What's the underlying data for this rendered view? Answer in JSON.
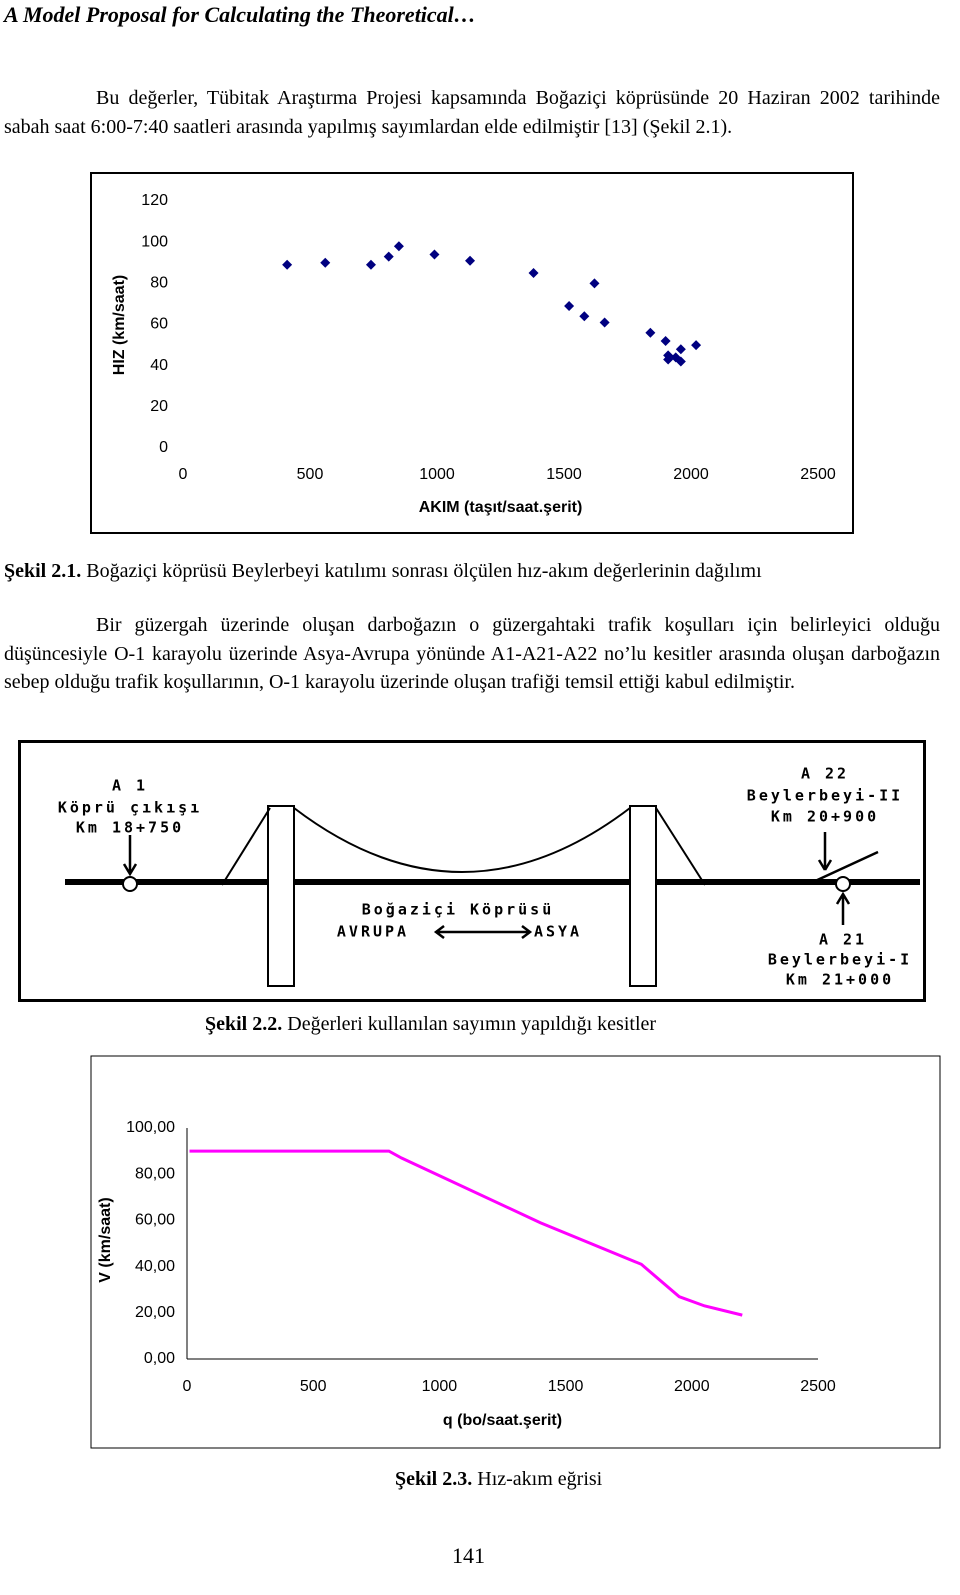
{
  "header": {
    "title": "A Model Proposal for  Calculating the Theoretical…"
  },
  "paragraphs": [
    "Bu değerler, Tübitak Araştırma Projesi kapsamında Boğaziçi köprüsünde 20 Haziran 2002 tarihinde sabah saat 6:00-7:40 saatleri arasında yapılmış sayımlardan elde edilmiştir [13] (Şekil 2.1).",
    "Bir güzergah üzerinde oluşan darboğazın o güzergahtaki trafik koşulları için belirleyici olduğu düşüncesiyle O-1 karayolu üzerinde Asya-Avrupa yönünde A1-A21-A22 no’lu kesitler arasında oluşan darboğazın sebep olduğu trafik koşullarının, O-1 karayolu üzerinde oluşan trafiği temsil ettiği kabul edilmiştir."
  ],
  "captions": [
    {
      "label": "Şekil 2.1.",
      "text": "Boğaziçi köprüsü Beylerbeyi katılımı sonrası ölçülen hız-akım değerlerinin dağılımı"
    },
    {
      "label": "Şekil 2.2.",
      "text": "Değerleri kullanılan sayımın yapıldığı kesitler"
    },
    {
      "label": "Şekil 2.3.",
      "text": "Hız-akım eğrisi"
    }
  ],
  "diagram": {
    "a1": [
      "A 1",
      "Köprü çıkışı",
      "Km 18+750"
    ],
    "a22": [
      "A 22",
      "Beylerbeyi-II",
      "Km 20+900"
    ],
    "bridge": "Boğaziçi Köprüsü",
    "west": "AVRUPA",
    "east": "ASYA",
    "a21": [
      "A 21",
      "Beylerbeyi-I",
      "Km 21+000"
    ]
  },
  "page_number": "141",
  "chart_data": [
    {
      "type": "scatter",
      "x_label": "AKIM (taşıt/saat.şerit)",
      "y_label": "HIZ (km/saat)",
      "color": "#000080",
      "x": [
        410,
        560,
        740,
        810,
        850,
        990,
        1130,
        1380,
        1520,
        1580,
        1620,
        1660,
        1840,
        1900,
        1910,
        1910,
        1940,
        1960,
        1960,
        2020
      ],
      "values": [
        89,
        90,
        89,
        93,
        98,
        94,
        91,
        85,
        69,
        64,
        80,
        61,
        56,
        52,
        45,
        43,
        44,
        48,
        42,
        50
      ],
      "xlim": [
        0,
        2500
      ],
      "xticks": [
        0,
        500,
        1000,
        1500,
        2000,
        2500
      ],
      "ylim": [
        0,
        120
      ],
      "yticks": [
        0,
        20,
        40,
        60,
        80,
        100,
        120
      ],
      "grid": false
    },
    {
      "type": "line",
      "x_label": "q (bo/saat.şerit)",
      "y_label": "V (km/saat)",
      "color": "#ff00ff",
      "x": [
        10,
        800,
        850,
        1400,
        1800,
        1950,
        2050,
        2200
      ],
      "values": [
        90,
        90,
        87,
        59,
        41,
        27,
        23,
        19
      ],
      "xlim": [
        0,
        2500
      ],
      "xticks": [
        0,
        500,
        1000,
        1500,
        2000,
        2500
      ],
      "ylim": [
        0,
        100
      ],
      "yticks": [
        {
          "value": 0,
          "label": "0,00"
        },
        {
          "value": 20,
          "label": "20,00"
        },
        {
          "value": 40,
          "label": "40,00"
        },
        {
          "value": 60,
          "label": "60,00"
        },
        {
          "value": 80,
          "label": "80,00"
        },
        {
          "value": 100,
          "label": "100,00"
        }
      ],
      "grid": false
    }
  ]
}
